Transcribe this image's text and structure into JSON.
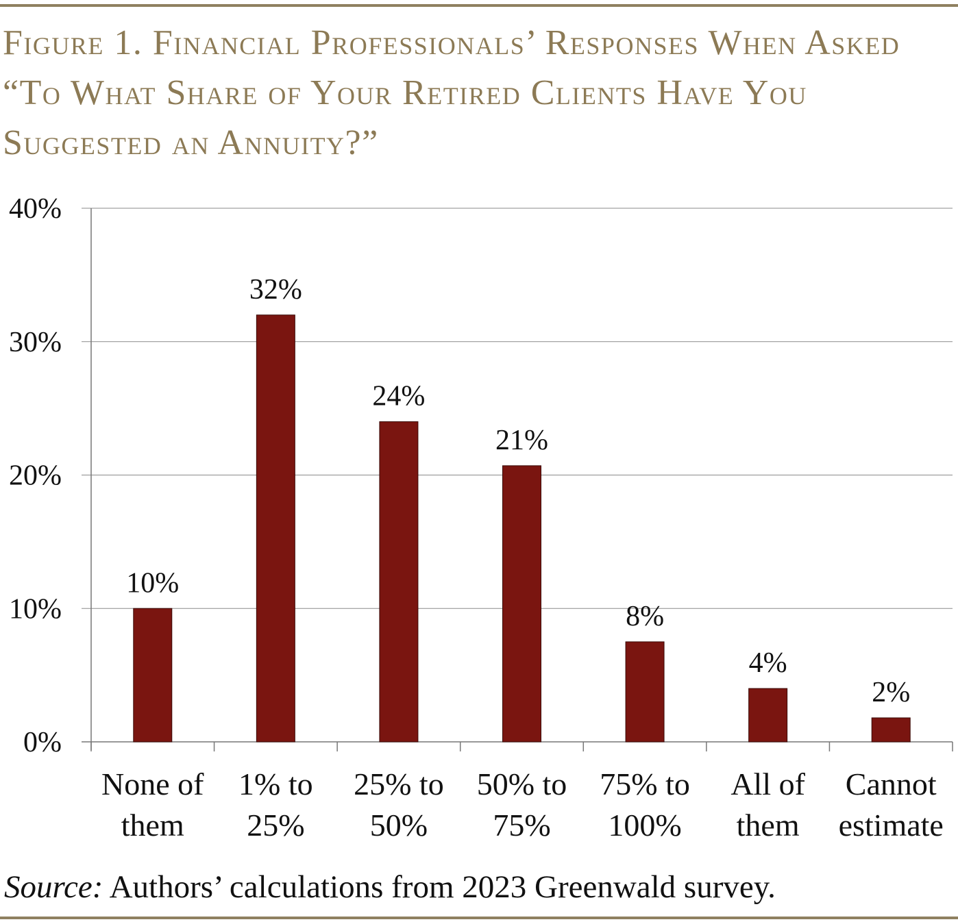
{
  "title": "Figure 1. Financial Professionals’ Responses When Asked “To What Share of Your Retired Clients Have You Suggested an Annuity?”",
  "source_label": "Source:",
  "source_text": " Authors’ calculations from 2023 Greenwald survey.",
  "colors": {
    "bar": "#7a1510",
    "title": "#8c7a55",
    "rule": "#8f8060",
    "grid": "#8a8a8a"
  },
  "chart_data": {
    "type": "bar",
    "title": "Financial Professionals’ Responses When Asked “To What Share of Your Retired Clients Have You Suggested an Annuity?”",
    "xlabel": "",
    "ylabel": "",
    "ylim": [
      0,
      40
    ],
    "yticks": [
      0,
      10,
      20,
      30,
      40
    ],
    "ytick_labels": [
      "0%",
      "10%",
      "20%",
      "30%",
      "40%"
    ],
    "grid": true,
    "categories": [
      [
        "None of",
        "them"
      ],
      [
        "1% to",
        "25%"
      ],
      [
        "25% to",
        "50%"
      ],
      [
        "50% to",
        "75%"
      ],
      [
        "75% to",
        "100%"
      ],
      [
        "All of",
        "them"
      ],
      [
        "Cannot",
        "estimate"
      ]
    ],
    "values": [
      10.0,
      32.0,
      24.0,
      20.7,
      7.5,
      4.0,
      1.8
    ],
    "data_labels": [
      "10%",
      "32%",
      "24%",
      "21%",
      "8%",
      "4%",
      "2%"
    ]
  }
}
